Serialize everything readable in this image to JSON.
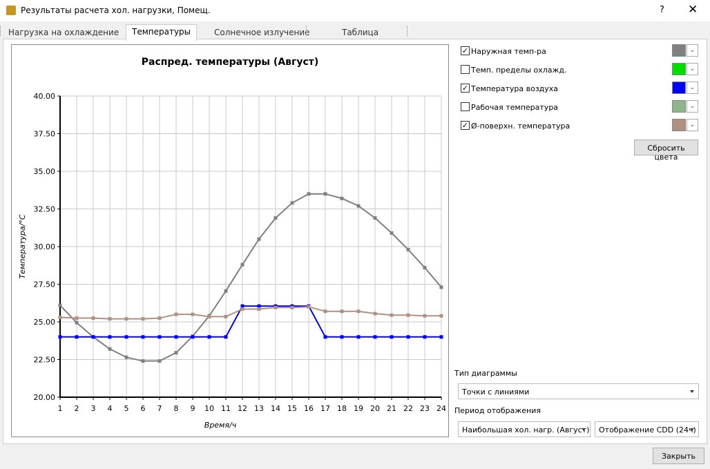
{
  "window": {
    "title": "Результаты расчета хол. нагрузки, Помещ.",
    "help": "?"
  },
  "tabs": {
    "items": [
      "Нагрузка на охлаждение",
      "Температуры",
      "Солнечное излучение",
      "Таблица"
    ],
    "active": 1
  },
  "chart_data": {
    "type": "line",
    "title": "Распред. температуры (Август)",
    "x_label": "Время/ч",
    "y_label": "Температура/°C",
    "x": [
      1,
      2,
      3,
      4,
      5,
      6,
      7,
      8,
      9,
      10,
      11,
      12,
      13,
      14,
      15,
      16,
      17,
      18,
      19,
      20,
      21,
      22,
      23,
      24
    ],
    "xlim": [
      1,
      24
    ],
    "xticks": [
      1,
      2,
      3,
      4,
      5,
      6,
      7,
      8,
      9,
      10,
      11,
      12,
      13,
      14,
      15,
      16,
      17,
      18,
      19,
      20,
      21,
      22,
      23,
      24
    ],
    "ylim": [
      20,
      40
    ],
    "yticks": [
      {
        "value": 20,
        "label": "20.00"
      },
      {
        "value": 22.5,
        "label": "22.50"
      },
      {
        "value": 25,
        "label": "25.00"
      },
      {
        "value": 27.5,
        "label": "27.50"
      },
      {
        "value": 30,
        "label": "30.00"
      },
      {
        "value": 32.5,
        "label": "32.50"
      },
      {
        "value": 35,
        "label": "35.00"
      },
      {
        "value": 37.5,
        "label": "37.50"
      },
      {
        "value": 40,
        "label": "40.00"
      }
    ],
    "grid": true,
    "series": [
      {
        "name": "Наружная темп-ра",
        "color": "#808080",
        "visible": true,
        "values": [
          26.1,
          24.95,
          24.0,
          23.2,
          22.65,
          22.4,
          22.4,
          22.95,
          24.05,
          25.4,
          27.05,
          28.8,
          30.5,
          31.9,
          32.9,
          33.5,
          33.5,
          33.2,
          32.7,
          31.9,
          30.9,
          29.8,
          28.6,
          27.3
        ]
      },
      {
        "name": "Темп. пределы охлажд.",
        "color": "#00dd00",
        "visible": false,
        "values": [
          null,
          null,
          null,
          null,
          null,
          null,
          null,
          null,
          null,
          null,
          null,
          null,
          null,
          null,
          null,
          null,
          null,
          null,
          null,
          null,
          null,
          null,
          null,
          null
        ]
      },
      {
        "name": "Температура воздуха",
        "color": "#0000ff",
        "visible": true,
        "values": [
          24,
          24,
          24,
          24,
          24,
          24,
          24,
          24,
          24,
          24,
          24,
          26.05,
          26.05,
          26.05,
          26.05,
          26.05,
          24,
          24,
          24,
          24,
          24,
          24,
          24,
          24
        ]
      },
      {
        "name": "Рабочая температура",
        "color": "#8fb58a",
        "visible": false,
        "values": [
          null,
          null,
          null,
          null,
          null,
          null,
          null,
          null,
          null,
          null,
          null,
          null,
          null,
          null,
          null,
          null,
          null,
          null,
          null,
          null,
          null,
          null,
          null,
          null
        ]
      },
      {
        "name": "Ø-поверхн. температура",
        "color": "#b09080",
        "visible": true,
        "values": [
          25.3,
          25.25,
          25.25,
          25.2,
          25.2,
          25.2,
          25.25,
          25.5,
          25.5,
          25.35,
          25.35,
          25.85,
          25.85,
          25.95,
          25.95,
          26.0,
          25.7,
          25.7,
          25.7,
          25.55,
          25.45,
          25.45,
          25.4,
          25.4
        ]
      }
    ]
  },
  "controls": {
    "reset_colors": "Сбросить цвета",
    "chart_type_label": "Тип диаграммы",
    "chart_type": "Точки с линиями",
    "period_label": "Период отображения",
    "period": "Наибольшая хол. нагр. (Август)",
    "display": "Отображение CDD (24ч)",
    "close": "Закрыть"
  }
}
